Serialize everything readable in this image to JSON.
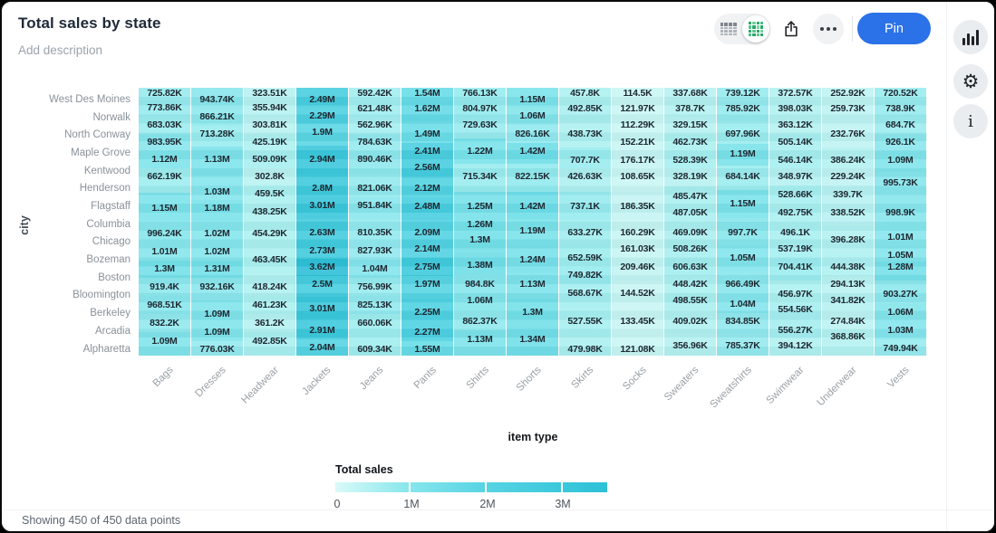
{
  "header": {
    "title": "Total sales by state",
    "description_placeholder": "Add description"
  },
  "toolbar": {
    "pin_label": "Pin",
    "icons": [
      "table-view-icon",
      "heatmap-view-icon",
      "share-icon",
      "more-icon"
    ],
    "accent_blue": "#2b71e8",
    "accent_green": "#27a768"
  },
  "sidebar": {
    "buttons": [
      "chart-type-icon",
      "settings-gear-icon",
      "info-icon"
    ]
  },
  "footer": {
    "status": "Showing 450 of 450 data points"
  },
  "chart_data": {
    "type": "heatmap",
    "title": "Total sales by state",
    "xlabel": "item type",
    "ylabel": "city",
    "x_categories": [
      "Bags",
      "Dresses",
      "Headwear",
      "Jackets",
      "Jeans",
      "Pants",
      "Shirts",
      "Shorts",
      "Skirts",
      "Socks",
      "Sweaters",
      "Sweatshirts",
      "Swimwear",
      "Underwear",
      "Vests"
    ],
    "y_categories": [
      "West Des Moines",
      "Norwalk",
      "North Conway",
      "Maple Grove",
      "Kentwood",
      "Henderson",
      "Flagstaff",
      "Columbia",
      "Chicago",
      "Bozeman",
      "Boston",
      "Bloomington",
      "Berkeley",
      "Arcadia",
      "Alpharetta"
    ],
    "legend": {
      "title": "Total sales",
      "ticks": [
        "0",
        "1M",
        "2M",
        "3M"
      ],
      "min": 0,
      "max": 3650000,
      "gradient_stops": [
        [
          0,
          "#d9faf8"
        ],
        [
          100000,
          "#cbf6f4"
        ],
        [
          300000,
          "#baf2f2"
        ],
        [
          500000,
          "#a9eff0"
        ],
        [
          700000,
          "#9becef"
        ],
        [
          900000,
          "#8de8ed"
        ],
        [
          1100000,
          "#80e4eb"
        ],
        [
          1400000,
          "#6fdee8"
        ],
        [
          1700000,
          "#62d9e6"
        ],
        [
          2000000,
          "#57d4e3"
        ],
        [
          2400000,
          "#4acfe0"
        ],
        [
          2800000,
          "#3fcadd"
        ],
        [
          3200000,
          "#36c5da"
        ],
        [
          3700000,
          "#2cbfd6"
        ]
      ]
    },
    "columns": [
      {
        "item": "Bags",
        "cells": [
          [
            6,
            "725.82K"
          ],
          [
            22,
            "773.86K"
          ],
          [
            41,
            "683.03K"
          ],
          [
            60,
            "983.95K"
          ],
          [
            79,
            "1.12M"
          ],
          [
            98,
            "662.19K"
          ],
          [
            133,
            "1.15M"
          ],
          [
            161,
            "996.24K"
          ],
          [
            181,
            "1.01M"
          ],
          [
            200,
            "1.3M"
          ],
          [
            220,
            "919.4K"
          ],
          [
            240,
            "968.51K"
          ],
          [
            260,
            "832.2K"
          ],
          [
            280,
            "1.09M"
          ]
        ]
      },
      {
        "item": "Dresses",
        "cells": [
          [
            13,
            "943.74K"
          ],
          [
            32,
            "866.21K"
          ],
          [
            51,
            "713.28K"
          ],
          [
            79,
            "1.13M"
          ],
          [
            115,
            "1.03M"
          ],
          [
            133,
            "1.18M"
          ],
          [
            161,
            "1.02M"
          ],
          [
            181,
            "1.02M"
          ],
          [
            200,
            "1.31M"
          ],
          [
            220,
            "932.16K"
          ],
          [
            250,
            "1.09M"
          ],
          [
            270,
            "1.09M"
          ],
          [
            289,
            "776.03K"
          ]
        ]
      },
      {
        "item": "Headwear",
        "cells": [
          [
            6,
            "323.51K"
          ],
          [
            22,
            "355.94K"
          ],
          [
            41,
            "303.81K"
          ],
          [
            60,
            "425.19K"
          ],
          [
            79,
            "509.09K"
          ],
          [
            98,
            "302.8K"
          ],
          [
            117,
            "459.5K"
          ],
          [
            137,
            "438.25K"
          ],
          [
            161,
            "454.29K"
          ],
          [
            190,
            "463.45K"
          ],
          [
            220,
            "418.24K"
          ],
          [
            240,
            "461.23K"
          ],
          [
            260,
            "361.2K"
          ],
          [
            280,
            "492.85K"
          ]
        ]
      },
      {
        "item": "Jackets",
        "cells": [
          [
            13,
            "2.49M"
          ],
          [
            31,
            "2.29M"
          ],
          [
            49,
            "1.9M"
          ],
          [
            79,
            "2.94M"
          ],
          [
            111,
            "2.8M"
          ],
          [
            130,
            "3.01M"
          ],
          [
            160,
            "2.63M"
          ],
          [
            180,
            "2.73M"
          ],
          [
            198,
            "3.62M"
          ],
          [
            217,
            "2.5M"
          ],
          [
            244,
            "3.01M"
          ],
          [
            268,
            "2.91M"
          ],
          [
            287,
            "2.04M"
          ]
        ]
      },
      {
        "item": "Jeans",
        "cells": [
          [
            6,
            "592.42K"
          ],
          [
            23,
            "621.48K"
          ],
          [
            41,
            "562.96K"
          ],
          [
            60,
            "784.63K"
          ],
          [
            79,
            "890.46K"
          ],
          [
            111,
            "821.06K"
          ],
          [
            130,
            "951.84K"
          ],
          [
            160,
            "810.35K"
          ],
          [
            180,
            "827.93K"
          ],
          [
            200,
            "1.04M"
          ],
          [
            220,
            "756.99K"
          ],
          [
            240,
            "825.13K"
          ],
          [
            260,
            "660.06K"
          ],
          [
            289,
            "609.34K"
          ]
        ]
      },
      {
        "item": "Pants",
        "cells": [
          [
            6,
            "1.54M"
          ],
          [
            23,
            "1.62M"
          ],
          [
            51,
            "1.49M"
          ],
          [
            70,
            "2.41M"
          ],
          [
            88,
            "2.56M"
          ],
          [
            111,
            "2.12M"
          ],
          [
            131,
            "2.48M"
          ],
          [
            160,
            "2.09M"
          ],
          [
            178,
            "2.14M"
          ],
          [
            198,
            "2.75M"
          ],
          [
            217,
            "1.97M"
          ],
          [
            248,
            "2.25M"
          ],
          [
            270,
            "2.27M"
          ],
          [
            289,
            "1.55M"
          ]
        ]
      },
      {
        "item": "Shirts",
        "cells": [
          [
            6,
            "766.13K"
          ],
          [
            23,
            "804.97K"
          ],
          [
            41,
            "729.63K"
          ],
          [
            70,
            "1.22M"
          ],
          [
            98,
            "715.34K"
          ],
          [
            131,
            "1.25M"
          ],
          [
            151,
            "1.26M"
          ],
          [
            168,
            "1.3M"
          ],
          [
            196,
            "1.38M"
          ],
          [
            217,
            "984.8K"
          ],
          [
            235,
            "1.06M"
          ],
          [
            258,
            "862.37K"
          ],
          [
            278,
            "1.13M"
          ]
        ]
      },
      {
        "item": "Shorts",
        "cells": [
          [
            13,
            "1.15M"
          ],
          [
            31,
            "1.06M"
          ],
          [
            51,
            "826.16K"
          ],
          [
            70,
            "1.42M"
          ],
          [
            98,
            "822.15K"
          ],
          [
            131,
            "1.42M"
          ],
          [
            158,
            "1.19M"
          ],
          [
            190,
            "1.24M"
          ],
          [
            217,
            "1.13M"
          ],
          [
            248,
            "1.3M"
          ],
          [
            278,
            "1.34M"
          ]
        ]
      },
      {
        "item": "Skirts",
        "cells": [
          [
            6,
            "457.8K"
          ],
          [
            23,
            "492.85K"
          ],
          [
            51,
            "438.73K"
          ],
          [
            80,
            "707.7K"
          ],
          [
            98,
            "426.63K"
          ],
          [
            131,
            "737.1K"
          ],
          [
            160,
            "633.27K"
          ],
          [
            188,
            "652.59K"
          ],
          [
            207,
            "749.82K"
          ],
          [
            227,
            "568.67K"
          ],
          [
            258,
            "527.55K"
          ],
          [
            289,
            "479.98K"
          ]
        ]
      },
      {
        "item": "Socks",
        "cells": [
          [
            6,
            "114.5K"
          ],
          [
            23,
            "121.97K"
          ],
          [
            41,
            "112.29K"
          ],
          [
            60,
            "152.21K"
          ],
          [
            80,
            "176.17K"
          ],
          [
            98,
            "108.65K"
          ],
          [
            131,
            "186.35K"
          ],
          [
            160,
            "160.29K"
          ],
          [
            178,
            "161.03K"
          ],
          [
            198,
            "209.46K"
          ],
          [
            227,
            "144.52K"
          ],
          [
            258,
            "133.45K"
          ],
          [
            289,
            "121.08K"
          ]
        ]
      },
      {
        "item": "Sweaters",
        "cells": [
          [
            6,
            "337.68K"
          ],
          [
            23,
            "378.7K"
          ],
          [
            41,
            "329.15K"
          ],
          [
            60,
            "462.73K"
          ],
          [
            80,
            "528.39K"
          ],
          [
            98,
            "328.19K"
          ],
          [
            120,
            "485.47K"
          ],
          [
            138,
            "487.05K"
          ],
          [
            160,
            "469.09K"
          ],
          [
            178,
            "508.26K"
          ],
          [
            198,
            "606.63K"
          ],
          [
            217,
            "448.42K"
          ],
          [
            235,
            "498.55K"
          ],
          [
            258,
            "409.02K"
          ],
          [
            285,
            "356.96K"
          ]
        ]
      },
      {
        "item": "Sweatshirts",
        "cells": [
          [
            6,
            "739.12K"
          ],
          [
            23,
            "785.92K"
          ],
          [
            51,
            "697.96K"
          ],
          [
            73,
            "1.19M"
          ],
          [
            98,
            "684.14K"
          ],
          [
            128,
            "1.15M"
          ],
          [
            160,
            "997.7K"
          ],
          [
            188,
            "1.05M"
          ],
          [
            217,
            "966.49K"
          ],
          [
            239,
            "1.04M"
          ],
          [
            258,
            "834.85K"
          ],
          [
            285,
            "785.37K"
          ]
        ]
      },
      {
        "item": "Swimwear",
        "cells": [
          [
            6,
            "372.57K"
          ],
          [
            23,
            "398.03K"
          ],
          [
            41,
            "363.12K"
          ],
          [
            60,
            "505.14K"
          ],
          [
            80,
            "546.14K"
          ],
          [
            98,
            "348.97K"
          ],
          [
            118,
            "528.66K"
          ],
          [
            138,
            "492.75K"
          ],
          [
            160,
            "496.1K"
          ],
          [
            178,
            "537.19K"
          ],
          [
            198,
            "704.41K"
          ],
          [
            228,
            "456.97K"
          ],
          [
            245,
            "554.56K"
          ],
          [
            268,
            "556.27K"
          ],
          [
            285,
            "394.12K"
          ]
        ]
      },
      {
        "item": "Underwear",
        "cells": [
          [
            6,
            "252.92K"
          ],
          [
            23,
            "259.73K"
          ],
          [
            51,
            "232.76K"
          ],
          [
            80,
            "386.24K"
          ],
          [
            98,
            "229.24K"
          ],
          [
            118,
            "339.7K"
          ],
          [
            138,
            "338.52K"
          ],
          [
            168,
            "396.28K"
          ],
          [
            198,
            "444.38K"
          ],
          [
            217,
            "294.13K"
          ],
          [
            235,
            "341.82K"
          ],
          [
            258,
            "274.84K"
          ],
          [
            275,
            "368.86K"
          ]
        ]
      },
      {
        "item": "Vests",
        "cells": [
          [
            6,
            "720.52K"
          ],
          [
            23,
            "738.9K"
          ],
          [
            41,
            "684.7K"
          ],
          [
            60,
            "926.1K"
          ],
          [
            80,
            "1.09M"
          ],
          [
            105,
            "995.73K"
          ],
          [
            138,
            "998.9K"
          ],
          [
            165,
            "1.01M"
          ],
          [
            185,
            "1.05M"
          ],
          [
            198,
            "1.28M"
          ],
          [
            228,
            "903.27K"
          ],
          [
            248,
            "1.06M"
          ],
          [
            268,
            "1.03M"
          ],
          [
            288,
            "749.94K"
          ]
        ]
      }
    ]
  }
}
